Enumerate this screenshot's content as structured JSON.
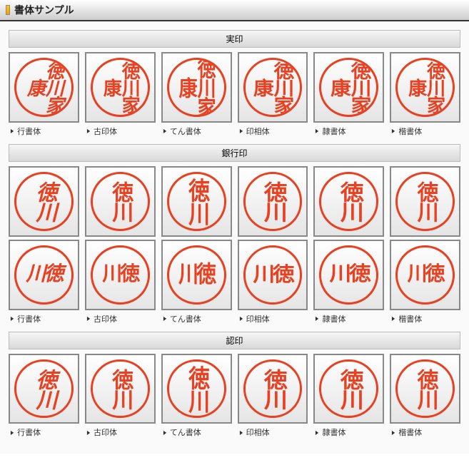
{
  "header": {
    "title": "書体サンプル"
  },
  "sections": [
    {
      "title": "実印",
      "rows": 1,
      "seal_text": "徳川家康",
      "text_class": "two-col",
      "fonts": [
        "行書体",
        "古印体",
        "てん書体",
        "印相体",
        "隷書体",
        "楷書体"
      ],
      "styles": [
        "style-gyousho",
        "style-koin",
        "style-tensho",
        "style-insou",
        "style-reisho",
        "style-kaisho"
      ]
    },
    {
      "title": "銀行印",
      "rows": 2,
      "seal_texts": [
        "徳川",
        "川徳"
      ],
      "text_classes": [
        "one-col",
        "horiz"
      ],
      "fonts": [
        "行書体",
        "古印体",
        "てん書体",
        "印相体",
        "隷書体",
        "楷書体"
      ],
      "styles": [
        "style-gyousho",
        "style-koin",
        "style-tensho",
        "style-insou",
        "style-reisho",
        "style-kaisho"
      ]
    },
    {
      "title": "認印",
      "rows": 1,
      "seal_text": "徳川",
      "text_class": "one-col",
      "fonts": [
        "行書体",
        "古印体",
        "てん書体",
        "印相体",
        "隷書体",
        "楷書体"
      ],
      "styles": [
        "style-gyousho",
        "style-koin",
        "style-tensho",
        "style-insou",
        "style-reisho",
        "style-kaisho"
      ]
    }
  ],
  "colors": {
    "seal": "#e84020",
    "border": "#888888",
    "bg_light": "#ffffff",
    "bg_dark": "#e5e5e5"
  }
}
